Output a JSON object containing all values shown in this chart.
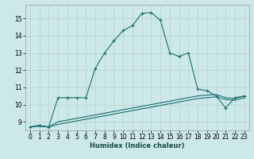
{
  "xlabel": "Humidex (Indice chaleur)",
  "bg_color": "#cce8e8",
  "grid_color": "#b8d0d0",
  "line_color": "#1a6e6e",
  "xlim": [
    -0.5,
    23.5
  ],
  "ylim": [
    8.5,
    15.8
  ],
  "xticks": [
    0,
    1,
    2,
    3,
    4,
    5,
    6,
    7,
    8,
    9,
    10,
    11,
    12,
    13,
    14,
    15,
    16,
    17,
    18,
    19,
    20,
    21,
    22,
    23
  ],
  "yticks": [
    9,
    10,
    11,
    12,
    13,
    14,
    15
  ],
  "curve1_x": [
    0,
    1,
    2,
    3,
    4,
    5,
    6,
    7,
    8,
    9,
    10,
    11,
    12,
    13,
    14,
    15,
    16,
    17,
    18,
    19,
    20,
    21,
    22,
    23
  ],
  "curve1_y": [
    8.7,
    8.8,
    8.7,
    10.4,
    10.4,
    10.4,
    10.4,
    12.1,
    13.0,
    13.7,
    14.3,
    14.6,
    15.3,
    15.35,
    14.9,
    13.0,
    12.8,
    13.0,
    10.9,
    10.8,
    10.5,
    9.8,
    10.4,
    10.5
  ],
  "curve2_x": [
    0,
    1,
    2,
    3,
    4,
    5,
    6,
    7,
    8,
    9,
    10,
    11,
    12,
    13,
    14,
    15,
    16,
    17,
    18,
    19,
    20,
    21,
    22,
    23
  ],
  "curve2_y": [
    8.7,
    8.75,
    8.7,
    8.85,
    8.95,
    9.05,
    9.15,
    9.25,
    9.35,
    9.45,
    9.55,
    9.65,
    9.75,
    9.85,
    9.95,
    10.05,
    10.15,
    10.25,
    10.35,
    10.4,
    10.45,
    10.3,
    10.25,
    10.4
  ],
  "curve3_x": [
    0,
    1,
    2,
    3,
    4,
    5,
    6,
    7,
    8,
    9,
    10,
    11,
    12,
    13,
    14,
    15,
    16,
    17,
    18,
    19,
    20,
    21,
    22,
    23
  ],
  "curve3_y": [
    8.7,
    8.75,
    8.7,
    9.0,
    9.1,
    9.2,
    9.3,
    9.4,
    9.5,
    9.6,
    9.7,
    9.8,
    9.9,
    10.0,
    10.1,
    10.2,
    10.3,
    10.4,
    10.5,
    10.55,
    10.58,
    10.4,
    10.35,
    10.5
  ]
}
